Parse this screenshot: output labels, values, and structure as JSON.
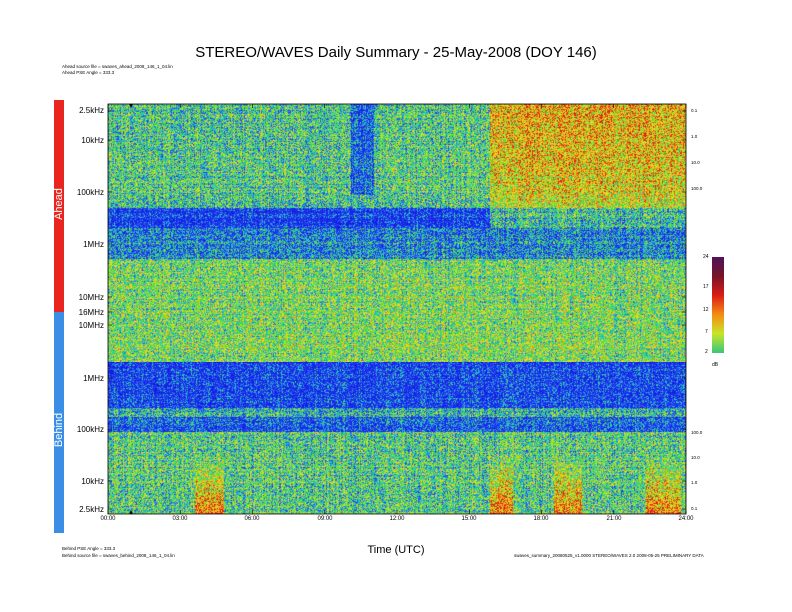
{
  "chart_data": {
    "type": "heatmap",
    "title": "STEREO/WAVES Daily Summary - 25-May-2008 (DOY 146)",
    "xlabel": "Time (UTC)",
    "x_ticks": [
      "00:00",
      "03:00",
      "06:00",
      "09:00",
      "12:00",
      "15:00",
      "18:00",
      "21:00",
      "24:00"
    ],
    "panels": [
      {
        "name": "Ahead",
        "color": "#e8251f",
        "y_ticks": [
          "2.5kHz",
          "10kHz",
          "100kHz",
          "1MHz",
          "10MHz",
          "16MHz"
        ],
        "right_ticks": [
          "0.1",
          "1.0",
          "10.0",
          "100.0"
        ],
        "source": "Ahead source file = swaves_ahead_2008_146_1_04.lin",
        "pse": "Ahead PSE Angle = 333.3"
      },
      {
        "name": "Behind",
        "color": "#3a8ee6",
        "y_ticks": [
          "10MHz",
          "1MHz",
          "100kHz",
          "10kHz",
          "2.5kHz"
        ],
        "right_ticks": [
          "100.0",
          "10.0",
          "1.0",
          "0.1"
        ],
        "source": "Behind source file = swaves_behind_2008_146_1_04.lin",
        "pse": "Behind PSE Angle = 333.3"
      }
    ],
    "colorbar": {
      "label": "dB",
      "ticks": [
        "24",
        "17",
        "12",
        "7",
        "2"
      ]
    },
    "footer": "swaves_summary_20080525_v1.0000 STEREO/WAVES 2.0 2008-05-25 PRELIMINARY DATA"
  }
}
